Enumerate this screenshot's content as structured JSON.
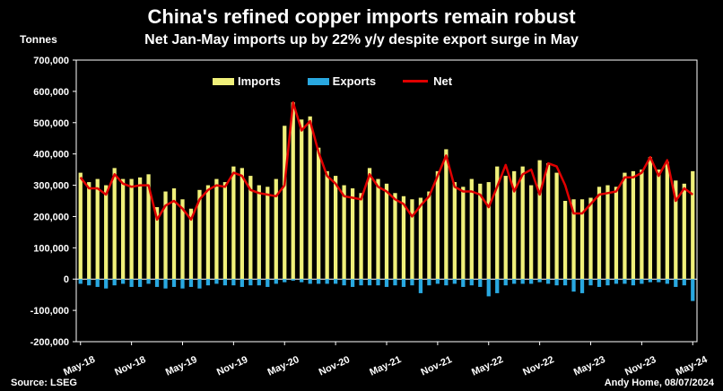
{
  "title": "China's refined copper imports remain robust",
  "subtitle": "Net Jan-May imports up by 22% y/y despite export surge in May",
  "unit_label": "Tonnes",
  "source": "Source: LSEG",
  "credit": "Andy Home, 08/07/2024",
  "colors": {
    "imports": "#f0f07a",
    "exports": "#29a8e0",
    "net": "#e00000",
    "background": "#000000"
  },
  "chart_data": {
    "type": "bar",
    "title": "China's refined copper imports remain robust",
    "subtitle": "Net Jan-May imports up by 22% y/y despite export surge in May",
    "ylabel": "Tonnes",
    "ylim": [
      -200000,
      700000
    ],
    "y_ticks": [
      "-200,000",
      "-100,000",
      "0",
      "100,000",
      "200,000",
      "300,000",
      "400,000",
      "500,000",
      "600,000",
      "700,000"
    ],
    "y_tick_values": [
      -200000,
      -100000,
      0,
      100000,
      200000,
      300000,
      400000,
      500000,
      600000,
      700000
    ],
    "x_tick_labels": [
      "May-18",
      "Nov-18",
      "May-19",
      "Nov-19",
      "May-20",
      "Nov-20",
      "May-21",
      "Nov-21",
      "May-22",
      "Nov-22",
      "May-23",
      "Nov-23",
      "May-24"
    ],
    "x_tick_index": [
      0,
      6,
      12,
      18,
      24,
      30,
      36,
      42,
      48,
      54,
      60,
      66,
      72
    ],
    "legend_position": "top",
    "grid": false,
    "x": [
      "May-18",
      "Jun-18",
      "Jul-18",
      "Aug-18",
      "Sep-18",
      "Oct-18",
      "Nov-18",
      "Dec-18",
      "Jan-19",
      "Feb-19",
      "Mar-19",
      "Apr-19",
      "May-19",
      "Jun-19",
      "Jul-19",
      "Aug-19",
      "Sep-19",
      "Oct-19",
      "Nov-19",
      "Dec-19",
      "Jan-20",
      "Feb-20",
      "Mar-20",
      "Apr-20",
      "May-20",
      "Jun-20",
      "Jul-20",
      "Aug-20",
      "Sep-20",
      "Oct-20",
      "Nov-20",
      "Dec-20",
      "Jan-21",
      "Feb-21",
      "Mar-21",
      "Apr-21",
      "May-21",
      "Jun-21",
      "Jul-21",
      "Aug-21",
      "Sep-21",
      "Oct-21",
      "Nov-21",
      "Dec-21",
      "Jan-22",
      "Feb-22",
      "Mar-22",
      "Apr-22",
      "May-22",
      "Jun-22",
      "Jul-22",
      "Aug-22",
      "Sep-22",
      "Oct-22",
      "Nov-22",
      "Dec-22",
      "Jan-23",
      "Feb-23",
      "Mar-23",
      "Apr-23",
      "May-23",
      "Jun-23",
      "Jul-23",
      "Aug-23",
      "Sep-23",
      "Oct-23",
      "Nov-23",
      "Dec-23",
      "Jan-24",
      "Feb-24",
      "Mar-24",
      "Apr-24",
      "May-24"
    ],
    "series": [
      {
        "name": "Imports",
        "type": "bar",
        "values": [
          340000,
          310000,
          320000,
          300000,
          355000,
          320000,
          320000,
          325000,
          335000,
          230000,
          280000,
          290000,
          255000,
          225000,
          285000,
          300000,
          320000,
          310000,
          360000,
          355000,
          330000,
          300000,
          295000,
          320000,
          490000,
          565000,
          510000,
          520000,
          420000,
          345000,
          330000,
          300000,
          290000,
          275000,
          355000,
          320000,
          305000,
          275000,
          265000,
          255000,
          260000,
          280000,
          345000,
          415000,
          310000,
          295000,
          320000,
          305000,
          310000,
          360000,
          330000,
          345000,
          360000,
          300000,
          380000,
          370000,
          340000,
          250000,
          255000,
          255000,
          260000,
          295000,
          300000,
          295000,
          340000,
          345000,
          350000,
          390000,
          350000,
          375000,
          315000,
          305000,
          345000
        ]
      },
      {
        "name": "Exports",
        "type": "bar",
        "values": [
          -15000,
          -20000,
          -25000,
          -30000,
          -20000,
          -15000,
          -25000,
          -25000,
          -15000,
          -25000,
          -30000,
          -25000,
          -30000,
          -25000,
          -30000,
          -20000,
          -15000,
          -20000,
          -20000,
          -25000,
          -20000,
          -20000,
          -25000,
          -15000,
          -10000,
          -5000,
          -10000,
          -15000,
          -15000,
          -15000,
          -15000,
          -20000,
          -25000,
          -20000,
          -20000,
          -20000,
          -25000,
          -20000,
          -25000,
          -20000,
          -45000,
          -20000,
          -15000,
          -20000,
          -15000,
          -25000,
          -20000,
          -25000,
          -55000,
          -45000,
          -20000,
          -15000,
          -15000,
          -15000,
          -10000,
          -15000,
          -20000,
          -20000,
          -40000,
          -45000,
          -20000,
          -25000,
          -20000,
          -15000,
          -15000,
          -20000,
          -15000,
          -10000,
          -10000,
          -15000,
          -25000,
          -20000,
          -70000
        ]
      },
      {
        "name": "Net",
        "type": "line",
        "values": [
          325000,
          290000,
          290000,
          270000,
          335000,
          305000,
          295000,
          300000,
          300000,
          190000,
          235000,
          250000,
          225000,
          190000,
          255000,
          285000,
          300000,
          295000,
          340000,
          330000,
          285000,
          275000,
          270000,
          265000,
          300000,
          565000,
          475000,
          505000,
          405000,
          330000,
          305000,
          265000,
          260000,
          255000,
          335000,
          295000,
          280000,
          255000,
          240000,
          200000,
          235000,
          265000,
          330000,
          395000,
          295000,
          280000,
          280000,
          270000,
          230000,
          295000,
          365000,
          280000,
          335000,
          350000,
          270000,
          370000,
          360000,
          300000,
          210000,
          210000,
          240000,
          270000,
          275000,
          280000,
          325000,
          325000,
          340000,
          390000,
          330000,
          380000,
          250000,
          290000,
          270000
        ]
      }
    ]
  }
}
